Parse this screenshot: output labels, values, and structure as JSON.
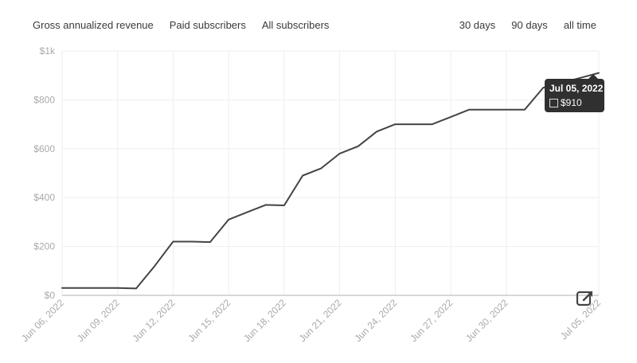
{
  "metric_tabs": [
    {
      "label": "Gross annualized revenue",
      "active": true
    },
    {
      "label": "Paid subscribers",
      "active": false
    },
    {
      "label": "All subscribers",
      "active": false
    }
  ],
  "range_tabs": [
    {
      "label": "30 days",
      "active": true
    },
    {
      "label": "90 days",
      "active": false
    },
    {
      "label": "all time",
      "active": false
    }
  ],
  "tooltip": {
    "date": "Jul 05, 2022",
    "value": "$910"
  },
  "icons": {
    "external_link": "external-link-icon"
  },
  "colors": {
    "line": "#444444",
    "grid": "#eeeeee",
    "axis": "#bfbfbf",
    "tick_text": "#a9a9a9",
    "tooltip_bg": "#303030"
  },
  "chart_data": {
    "type": "line",
    "title": "",
    "xlabel": "",
    "ylabel": "",
    "ylim": [
      0,
      1000
    ],
    "y_ticks": [
      0,
      200,
      400,
      600,
      800,
      1000
    ],
    "y_tick_labels": [
      "$0",
      "$200",
      "$400",
      "$600",
      "$800",
      "$1k"
    ],
    "x_ticks": [
      "2022-06-06",
      "2022-06-09",
      "2022-06-12",
      "2022-06-15",
      "2022-06-18",
      "2022-06-21",
      "2022-06-24",
      "2022-06-27",
      "2022-06-30",
      "2022-07-05"
    ],
    "x_tick_labels": [
      "Jun 06, 2022",
      "Jun 09, 2022",
      "Jun 12, 2022",
      "Jun 15, 2022",
      "Jun 18, 2022",
      "Jun 21, 2022",
      "Jun 24, 2022",
      "Jun 27, 2022",
      "Jun 30, 2022",
      "Jul 05, 2022"
    ],
    "grid": true,
    "series": [
      {
        "x": [
          "2022-06-06",
          "2022-06-07",
          "2022-06-08",
          "2022-06-09",
          "2022-06-10",
          "2022-06-11",
          "2022-06-12",
          "2022-06-13",
          "2022-06-14",
          "2022-06-15",
          "2022-06-16",
          "2022-06-17",
          "2022-06-18",
          "2022-06-19",
          "2022-06-20",
          "2022-06-21",
          "2022-06-22",
          "2022-06-23",
          "2022-06-24",
          "2022-06-25",
          "2022-06-26",
          "2022-06-27",
          "2022-06-28",
          "2022-06-29",
          "2022-06-30",
          "2022-07-01",
          "2022-07-02",
          "2022-07-03",
          "2022-07-04",
          "2022-07-05"
        ],
        "values": [
          30,
          30,
          30,
          30,
          28,
          120,
          220,
          220,
          218,
          310,
          340,
          370,
          368,
          490,
          520,
          580,
          610,
          670,
          700,
          700,
          700,
          730,
          760,
          760,
          760,
          760,
          850,
          870,
          890,
          910
        ]
      }
    ]
  }
}
